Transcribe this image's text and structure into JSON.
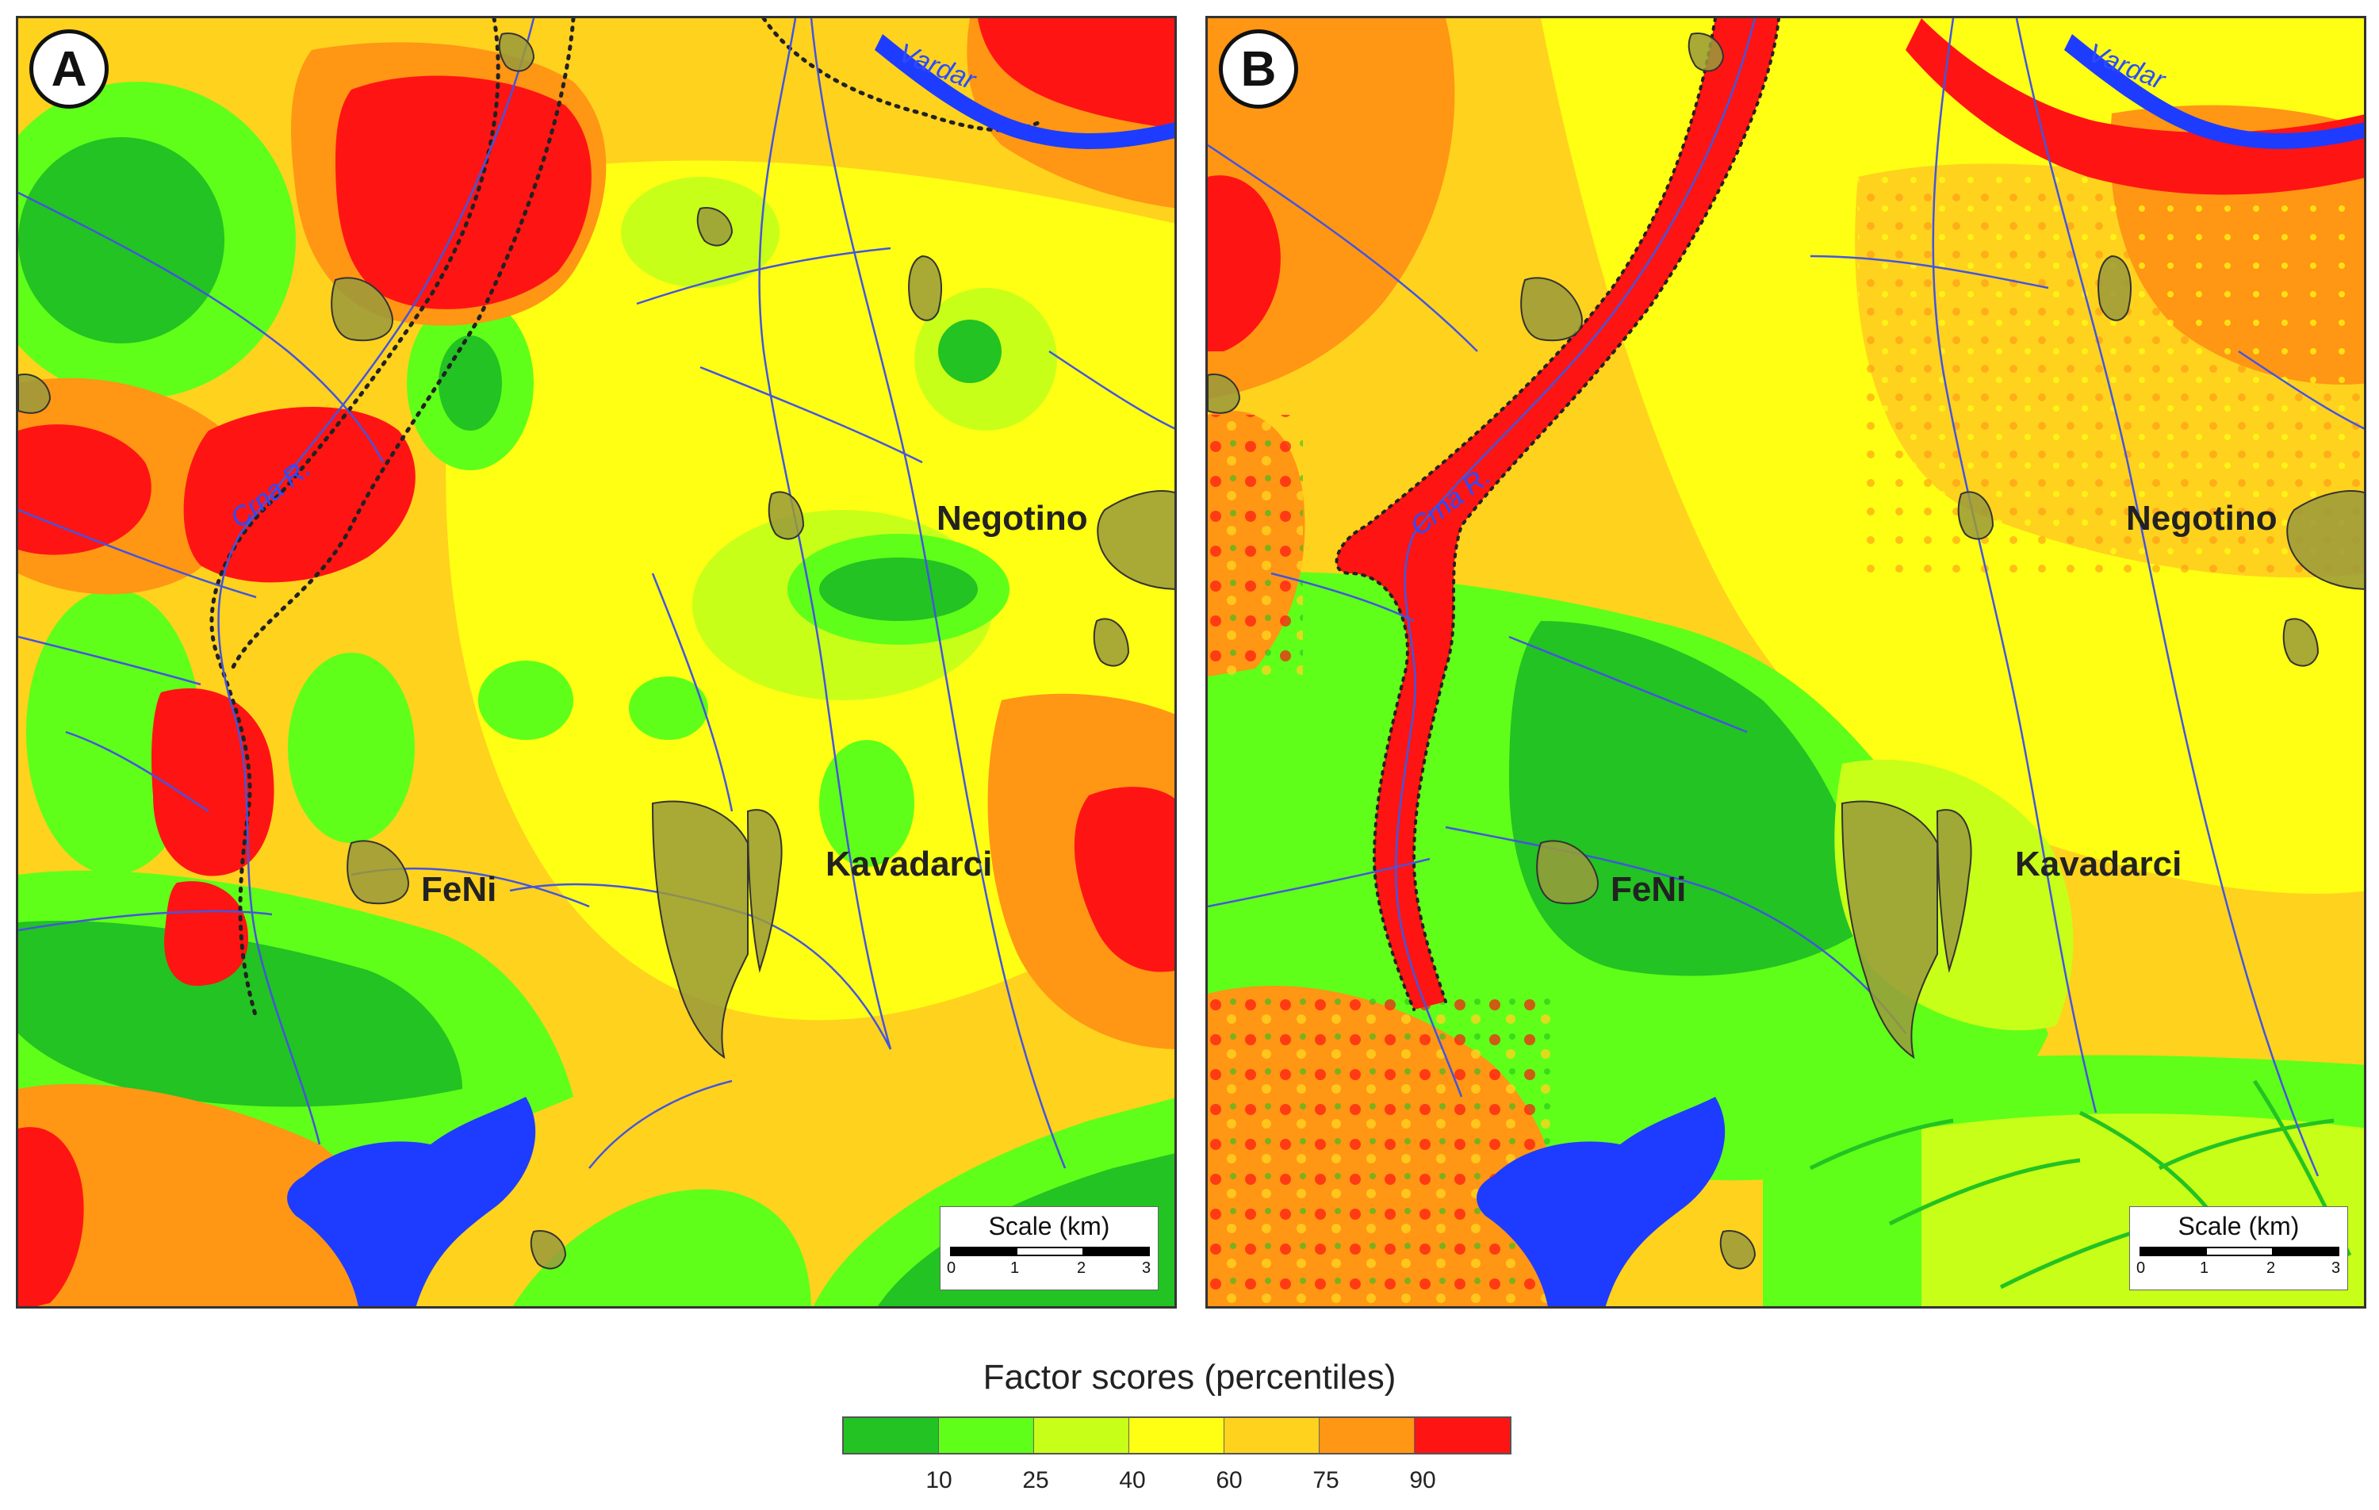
{
  "panels": [
    {
      "id": "A",
      "label": "A"
    },
    {
      "id": "B",
      "label": "B"
    }
  ],
  "towns": {
    "negotino": "Negotino",
    "kavadarci": "Kavadarci",
    "feni": "FeNi"
  },
  "rivers": {
    "crna": "Crna R.",
    "vardar": "Vardar"
  },
  "scale_bar": {
    "title": "Scale (km)",
    "ticks": [
      "0",
      "1",
      "2",
      "3"
    ]
  },
  "legend": {
    "title": "Factor scores (percentiles)",
    "classes": [
      {
        "color": "#22c322"
      },
      {
        "color": "#5fff19"
      },
      {
        "color": "#c8ff19"
      },
      {
        "color": "#ffff14"
      },
      {
        "color": "#ffd21e"
      },
      {
        "color": "#ff9614"
      },
      {
        "color": "#ff1414"
      }
    ],
    "breaks": [
      "10",
      "25",
      "40",
      "60",
      "75",
      "90"
    ]
  },
  "colors": {
    "water": "#1e3cff",
    "stream": "#4455dd",
    "settlement": "#9a9a3c",
    "dotted_boundary": "#222222"
  }
}
